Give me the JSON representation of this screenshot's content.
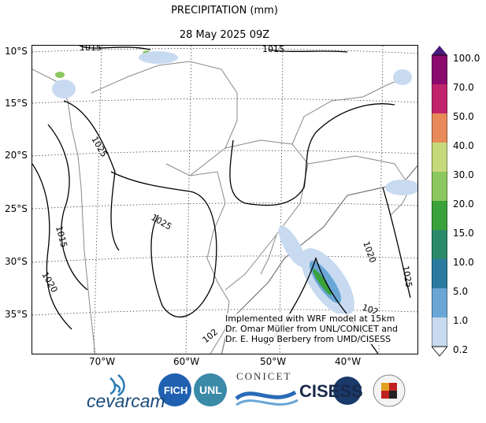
{
  "title": "PRECIPITATION (mm)",
  "subtitle": "28 May 2025 09Z",
  "lat_labels": [
    "10°S",
    "15°S",
    "20°S",
    "25°S",
    "30°S",
    "35°S"
  ],
  "lon_labels": [
    "70°W",
    "60°W",
    "50°W",
    "40°W"
  ],
  "isobar_labels": [
    "1015",
    "1015",
    "1025",
    "1025",
    "1015",
    "1020",
    "1020",
    "1025",
    "102",
    "102"
  ],
  "note": {
    "line1": "Implemented with WRF model at 15km",
    "line2": "Dr. Omar Müller from UNL/CONICET and",
    "line3": "Dr. E. Hugo Berbery from UMD/CISESS"
  },
  "colorbar": {
    "ticks": [
      "100.0",
      "70.0",
      "50.0",
      "40.0",
      "30.0",
      "20.0",
      "15.0",
      "10.0",
      "5.0",
      "1.0",
      "0.2"
    ],
    "colors": [
      "#8b0a6e",
      "#c0246a",
      "#e8895a",
      "#c6d87a",
      "#8cc860",
      "#3aa23a",
      "#2a8a6a",
      "#2a7aa0",
      "#6aa6d6",
      "#c8daf0",
      "#ffffff"
    ],
    "top_color": "#4a1a7a"
  },
  "logos": {
    "cevarcam": "cevarcam",
    "fich": "FICH",
    "unl": "UNL",
    "conicet": "CONICET",
    "cisess": "CISESS"
  }
}
